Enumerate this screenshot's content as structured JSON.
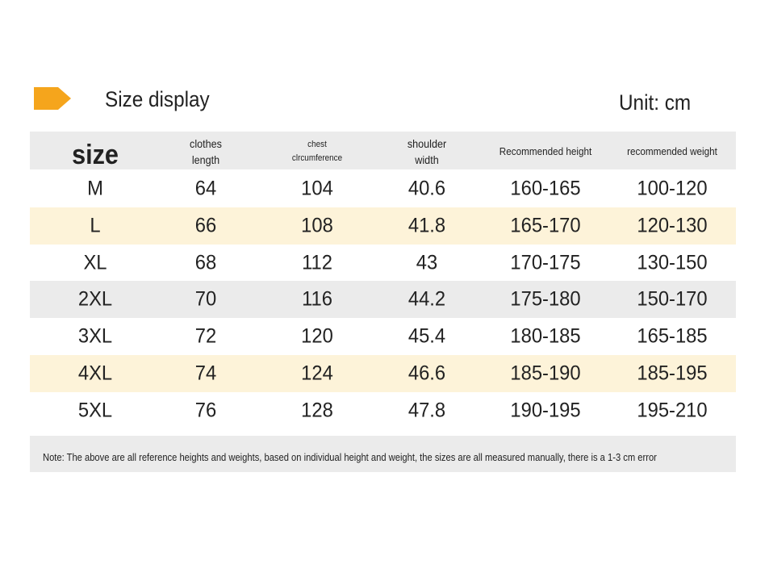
{
  "header": {
    "title": "Size display",
    "unit": "Unit: cm"
  },
  "table": {
    "columns": [
      [
        "size"
      ],
      [
        "clothes",
        "length"
      ],
      [
        "chest",
        "clrcumference"
      ],
      [
        "shoulder",
        "width"
      ],
      [
        "Recommended height"
      ],
      [
        "recommended weight"
      ]
    ],
    "rows": [
      [
        "M",
        64,
        104,
        40.6,
        "160-165",
        "100-120"
      ],
      [
        "L",
        66,
        108,
        41.8,
        "165-170",
        "120-130"
      ],
      [
        "XL",
        68,
        112,
        43,
        "170-175",
        "130-150"
      ],
      [
        "2XL",
        70,
        116,
        44.2,
        "175-180",
        "150-170"
      ],
      [
        "3XL",
        72,
        120,
        45.4,
        "180-185",
        "165-185"
      ],
      [
        "4XL",
        74,
        124,
        46.6,
        "185-190",
        "185-195"
      ],
      [
        "5XL",
        76,
        128,
        47.8,
        "190-195",
        "195-210"
      ]
    ]
  },
  "note": "Note: The above are all reference heights and weights, based on individual height and weight, the sizes are all measured manually, there is a 1-3 cm error"
}
